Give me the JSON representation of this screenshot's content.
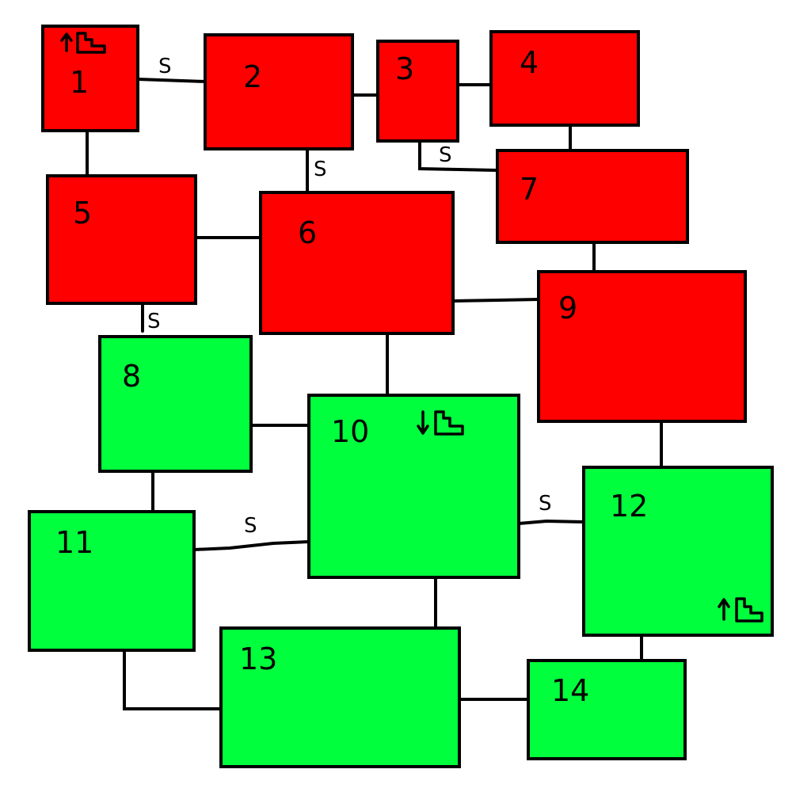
{
  "colors": {
    "red_zone": "#ff0000",
    "green_zone": "#00ff3c",
    "outline": "#000000",
    "background": "#ffffff"
  },
  "rooms": [
    {
      "id": "1",
      "label": "1",
      "zone": "red_zone",
      "icon": "stairs-up-icon"
    },
    {
      "id": "2",
      "label": "2",
      "zone": "red_zone"
    },
    {
      "id": "3",
      "label": "3",
      "zone": "red_zone"
    },
    {
      "id": "4",
      "label": "4",
      "zone": "red_zone"
    },
    {
      "id": "5",
      "label": "5",
      "zone": "red_zone"
    },
    {
      "id": "6",
      "label": "6",
      "zone": "red_zone"
    },
    {
      "id": "7",
      "label": "7",
      "zone": "red_zone"
    },
    {
      "id": "8",
      "label": "8",
      "zone": "green_zone"
    },
    {
      "id": "9",
      "label": "9",
      "zone": "red_zone"
    },
    {
      "id": "10",
      "label": "10",
      "zone": "green_zone",
      "icon": "stairs-down-icon"
    },
    {
      "id": "11",
      "label": "11",
      "zone": "green_zone"
    },
    {
      "id": "12",
      "label": "12",
      "zone": "green_zone",
      "icon": "stairs-up-icon"
    },
    {
      "id": "13",
      "label": "13",
      "zone": "green_zone"
    },
    {
      "id": "14",
      "label": "14",
      "zone": "green_zone"
    }
  ],
  "connections": [
    {
      "from": "1",
      "to": "2",
      "label": "S"
    },
    {
      "from": "1",
      "to": "5",
      "label": ""
    },
    {
      "from": "2",
      "to": "3",
      "label": ""
    },
    {
      "from": "2",
      "to": "6",
      "label": "S"
    },
    {
      "from": "3",
      "to": "4",
      "label": ""
    },
    {
      "from": "3",
      "to": "7",
      "label": "S"
    },
    {
      "from": "4",
      "to": "7",
      "label": ""
    },
    {
      "from": "5",
      "to": "6",
      "label": ""
    },
    {
      "from": "5",
      "to": "8",
      "label": "S"
    },
    {
      "from": "6",
      "to": "9",
      "label": ""
    },
    {
      "from": "6",
      "to": "10",
      "label": ""
    },
    {
      "from": "7",
      "to": "9",
      "label": ""
    },
    {
      "from": "8",
      "to": "10",
      "label": ""
    },
    {
      "from": "8",
      "to": "11",
      "label": ""
    },
    {
      "from": "9",
      "to": "12",
      "label": ""
    },
    {
      "from": "10",
      "to": "11",
      "label": "S"
    },
    {
      "from": "10",
      "to": "12",
      "label": "S"
    },
    {
      "from": "10",
      "to": "13",
      "label": ""
    },
    {
      "from": "11",
      "to": "13",
      "label": ""
    },
    {
      "from": "12",
      "to": "14",
      "label": ""
    },
    {
      "from": "13",
      "to": "14",
      "label": ""
    }
  ]
}
